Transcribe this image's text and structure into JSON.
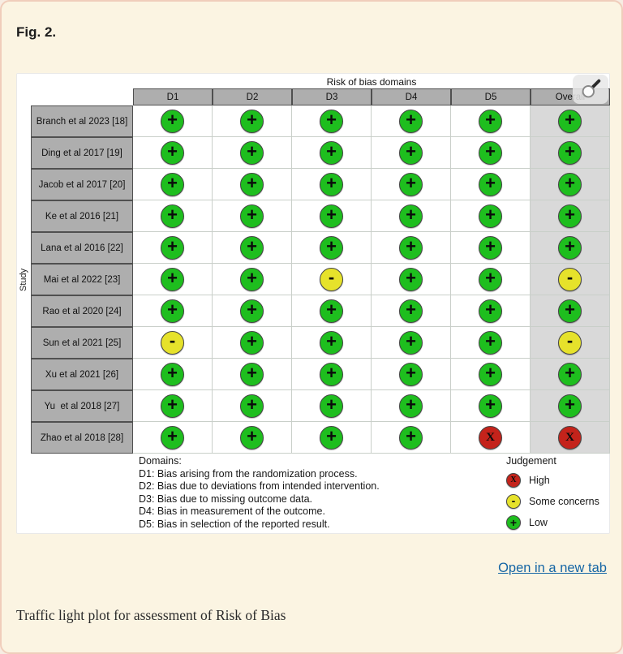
{
  "figure_label": "Fig. 2.",
  "caption": "Traffic light plot for assessment of Risk of Bias",
  "open_in_new_tab_label": "Open in a new tab",
  "chart_data": {
    "type": "heatmap",
    "title": "Risk of bias domains",
    "ylabel": "Study",
    "x_categories": [
      "D1",
      "D2",
      "D3",
      "D4",
      "D5",
      "Overall"
    ],
    "y_categories": [
      "Branch et al 2023 [18]",
      "Ding et al 2017 [19]",
      "Jacob et al 2017 [20]",
      "Ke et al 2016 [21]",
      "Lana et al 2016 [22]",
      "Mai et al 2022 [23]",
      "Rao et al 2020 [24]",
      "Sun et al 2021 [25]",
      "Xu et al 2021 [26]",
      "Yu  et al 2018 [27]",
      "Zhao et al 2018 [28]"
    ],
    "values": [
      [
        "low",
        "low",
        "low",
        "low",
        "low",
        "low"
      ],
      [
        "low",
        "low",
        "low",
        "low",
        "low",
        "low"
      ],
      [
        "low",
        "low",
        "low",
        "low",
        "low",
        "low"
      ],
      [
        "low",
        "low",
        "low",
        "low",
        "low",
        "low"
      ],
      [
        "low",
        "low",
        "low",
        "low",
        "low",
        "low"
      ],
      [
        "low",
        "low",
        "some_concerns",
        "low",
        "low",
        "some_concerns"
      ],
      [
        "low",
        "low",
        "low",
        "low",
        "low",
        "low"
      ],
      [
        "some_concerns",
        "low",
        "low",
        "low",
        "low",
        "some_concerns"
      ],
      [
        "low",
        "low",
        "low",
        "low",
        "low",
        "low"
      ],
      [
        "low",
        "low",
        "low",
        "low",
        "low",
        "low"
      ],
      [
        "low",
        "low",
        "low",
        "low",
        "high",
        "high"
      ]
    ],
    "legend_position": "bottom-right",
    "grid": true
  },
  "plot": {
    "legend": {
      "domains_title": "Domains:",
      "domains": [
        "D1: Bias arising from the randomization process.",
        "D2: Bias due to deviations from intended intervention.",
        "D3: Bias due to missing outcome data.",
        "D4: Bias in measurement of the outcome.",
        "D5: Bias in selection of the reported result."
      ],
      "judgement_title": "Judgement",
      "items": [
        {
          "key": "high",
          "label": "High",
          "symbol": "X",
          "color": "#C4231B"
        },
        {
          "key": "some_concerns",
          "label": "Some concerns",
          "symbol": "-",
          "color": "#E6E22B"
        },
        {
          "key": "low",
          "label": "Low",
          "symbol": "+",
          "color": "#1EBE1E"
        }
      ]
    },
    "icons": {
      "magnifier": "magnifier-icon"
    }
  },
  "colors": {
    "card_background": "#FBF4E2",
    "card_border": "#F0CDBB",
    "header_fill": "#AEAEAE",
    "overall_column_fill": "#D9D9D9",
    "grid_line": "#C9CFC9",
    "dark_border": "#505050",
    "link_blue": "#1666A5",
    "low_green": "#1EBE1E",
    "some_concerns_yellow": "#E6E22B",
    "high_red": "#C4231B"
  }
}
